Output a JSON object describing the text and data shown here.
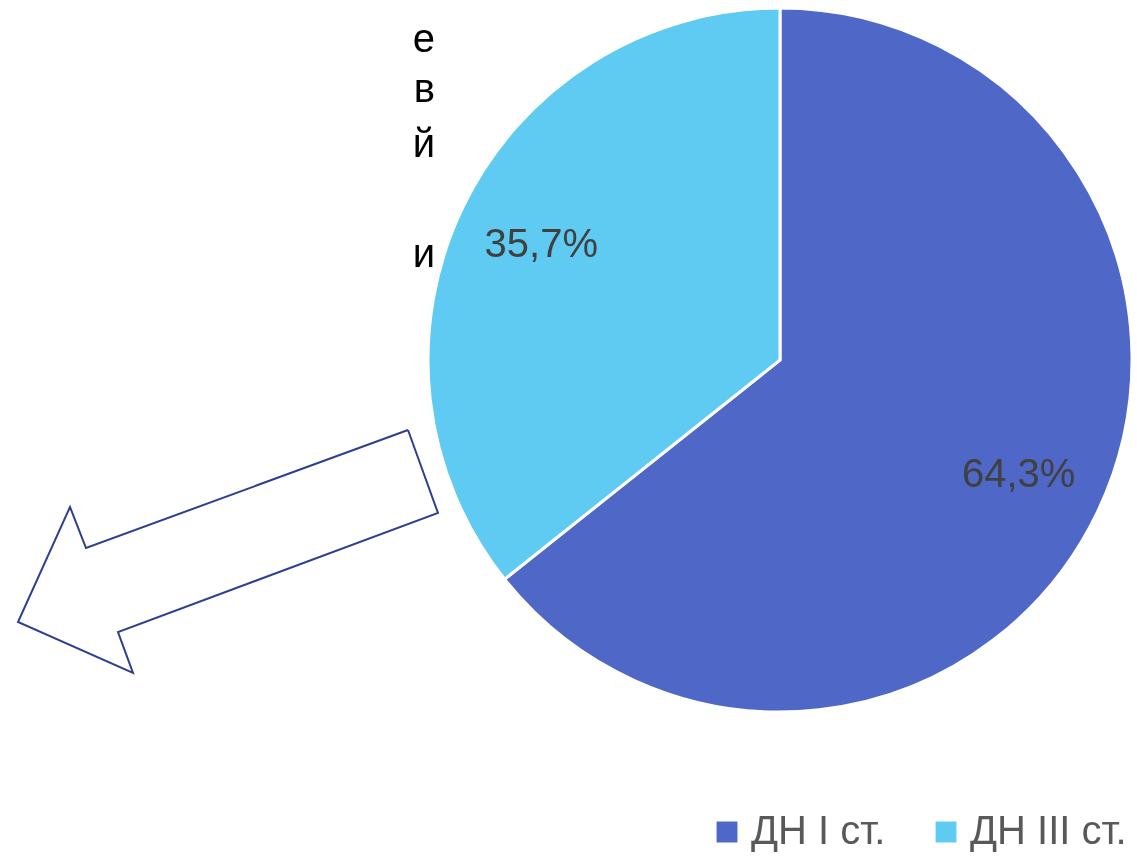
{
  "chart_data": {
    "type": "pie",
    "categories": [
      "ДН I ст.",
      "ДН III ст."
    ],
    "values": [
      64.3,
      35.7
    ],
    "colors": [
      "#4f68c8",
      "#5fcbf2"
    ],
    "value_labels": [
      "64,3%",
      "35,7%"
    ],
    "legend": "bottom right",
    "annotations": [
      "е",
      "в",
      "й",
      "и"
    ]
  }
}
